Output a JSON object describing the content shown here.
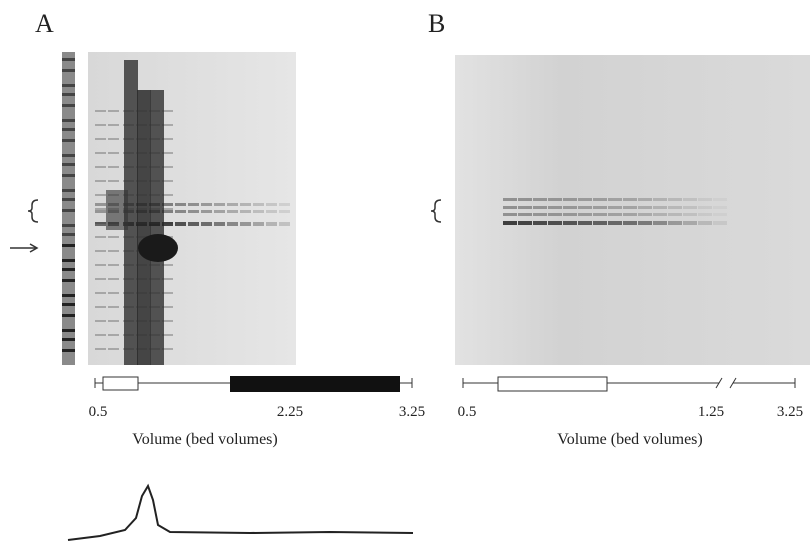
{
  "panels": [
    {
      "label": "A",
      "ticks": [
        "0.5",
        "2.25",
        "3.25"
      ],
      "axis_label": "Volume (bed volumes)"
    },
    {
      "label": "B",
      "ticks": [
        "0.5",
        "1.25",
        "3.25"
      ],
      "axis_label": "Volume (bed volumes)"
    }
  ]
}
